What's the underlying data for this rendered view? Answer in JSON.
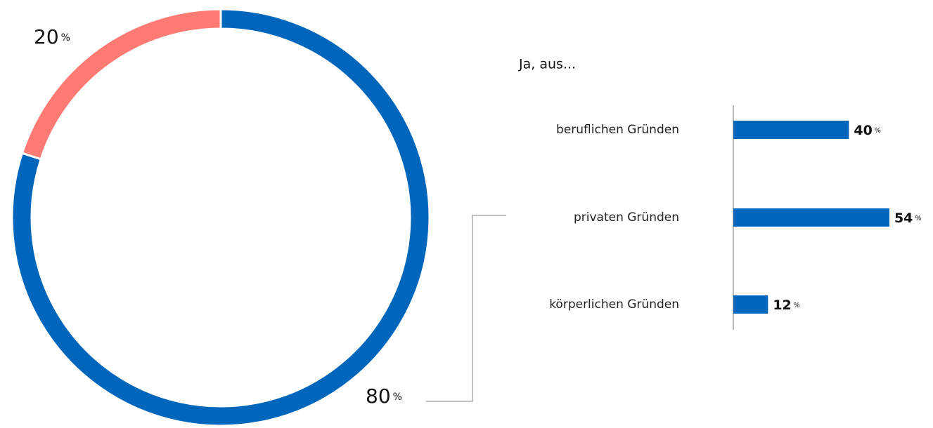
{
  "chart_data": [
    {
      "type": "pie",
      "categories": [
        null,
        null
      ],
      "values": [
        80,
        20
      ],
      "value_labels": [
        "80%",
        "20%"
      ],
      "colors": [
        "#0066bb",
        "#ff7a73"
      ],
      "donut": true
    },
    {
      "type": "hbar",
      "title": "Ja, aus...",
      "categories": [
        "beruflichen Gründen",
        "privaten Gründen",
        "körperlichen Gründen"
      ],
      "values": [
        40,
        54,
        12
      ],
      "value_labels": [
        "40%",
        "54%",
        "12%"
      ],
      "color": "#0066bb",
      "xlim": [
        0,
        100
      ]
    }
  ]
}
